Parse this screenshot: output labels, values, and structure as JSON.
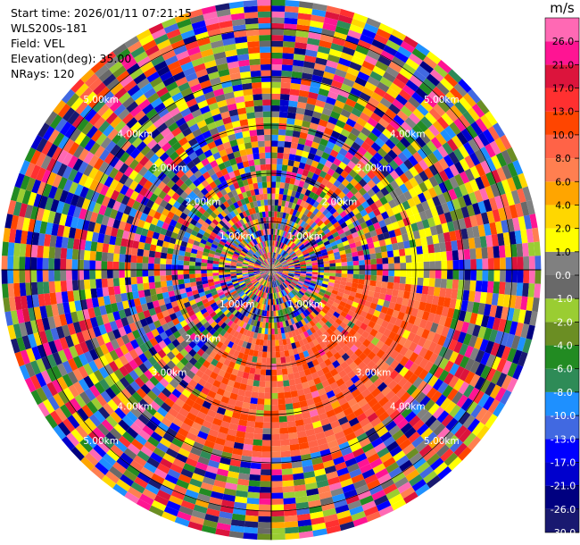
{
  "info": {
    "start_time": "Start time: 2026/01/11 07:21:15",
    "instrument": "WLS200s-181",
    "field": "Field: VEL",
    "elevation": "Elevation(deg): 35.00",
    "nrays": "NRays: 120"
  },
  "chart_data": {
    "type": "heatmap",
    "projection": "polar",
    "title": "",
    "field": "VEL",
    "units": "m/s",
    "nrays": 120,
    "elevation_deg": 35.0,
    "range_rings_km": [
      1.0,
      2.0,
      3.0,
      4.0,
      5.0
    ],
    "ring_label_texts": [
      "1.00km",
      "2.00km",
      "3.00km",
      "4.00km",
      "5.00km"
    ],
    "max_range_km": 5.6,
    "colorbar": {
      "tick_labels": [
        "-30.0",
        "-26.0",
        "-21.0",
        "-17.0",
        "-13.0",
        "-10.0",
        "-8.0",
        "-6.0",
        "-4.0",
        "-2.0",
        "-1.0",
        "0.0",
        "1.0",
        "2.0",
        "4.0",
        "6.0",
        "8.0",
        "10.0",
        "13.0",
        "17.0",
        "21.0",
        "26.0"
      ],
      "colors": [
        "#191970",
        "#000080",
        "#0000cd",
        "#0000ff",
        "#4169e1",
        "#1e90ff",
        "#2e8b57",
        "#228b22",
        "#6b8e23",
        "#9acd32",
        "#696969",
        "#808080",
        "#ffff00",
        "#ffd700",
        "#ffa500",
        "#ff7f50",
        "#ff6347",
        "#ff4500",
        "#ff3030",
        "#dc143c",
        "#ff1493",
        "#ff69b4"
      ],
      "range": [
        -30.0,
        26.0
      ]
    },
    "coherent_region": {
      "description_values": "positive velocities (about 6 to 10 m/s) in south-east sector, yellow/gray in east",
      "azimuth_deg": [
        95,
        215
      ],
      "range_km": [
        1.4,
        3.9
      ],
      "dominant_value_ms": 8.0
    }
  }
}
